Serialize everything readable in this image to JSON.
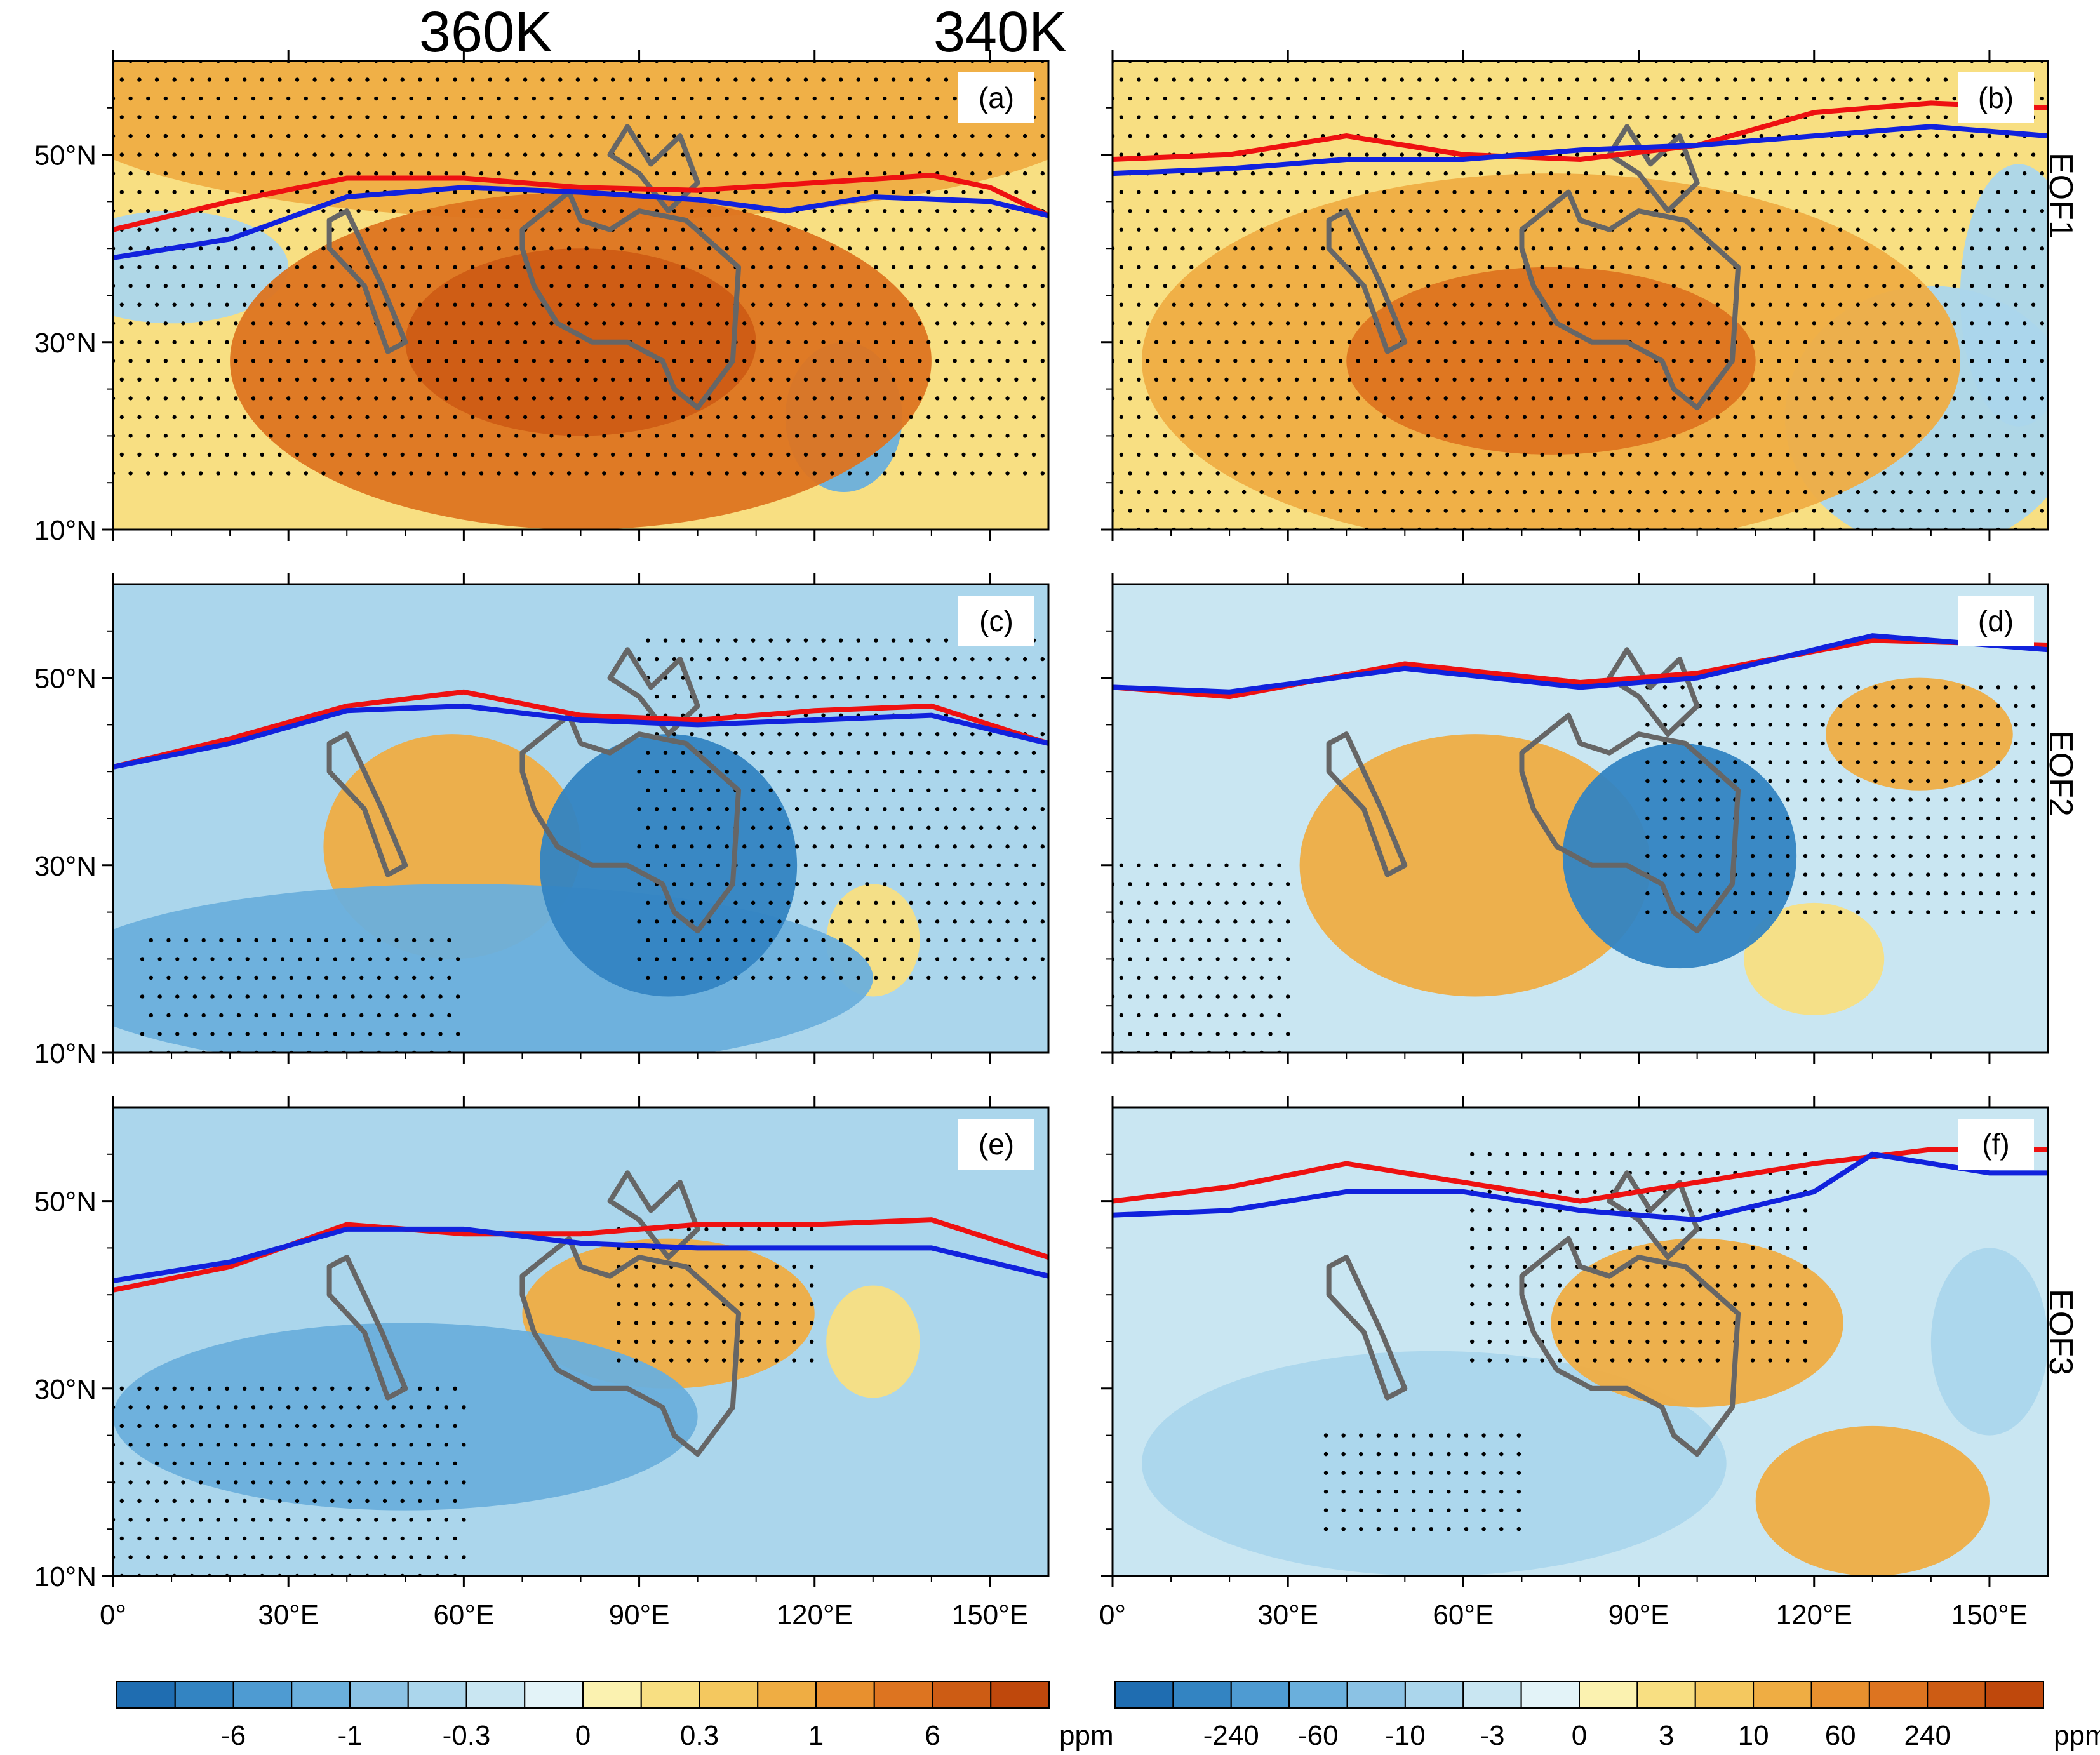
{
  "figure": {
    "column_titles": [
      "360K",
      "340K"
    ],
    "row_labels": [
      "EOF1",
      "EOF2",
      "EOF3"
    ],
    "panel_labels": [
      "(a)",
      "(b)",
      "(c)",
      "(d)",
      "(e)",
      "(f)"
    ]
  },
  "colors": {
    "red_line": "#ee1111",
    "blue_line": "#1122dd",
    "region_outline": "#666666",
    "palette": [
      "#1f6db1",
      "#3384c2",
      "#4e9bd2",
      "#6aafdc",
      "#8bc2e4",
      "#abd6ec",
      "#c9e6f2",
      "#e3f3f8",
      "#fbf2b0",
      "#f8df82",
      "#f4c85f",
      "#efad43",
      "#e8902e",
      "#dd7420",
      "#cd5c14",
      "#bf480c"
    ]
  },
  "chart_data": [
    {
      "type": "heatmap",
      "panel": "(a)",
      "column": "360K",
      "row": "EOF1",
      "xlim": [
        0,
        160
      ],
      "ylim": [
        10,
        60
      ],
      "xticks": [
        0,
        30,
        60,
        90,
        120,
        150
      ],
      "yticks": [
        10,
        30,
        50
      ],
      "xtick_labels": [],
      "ytick_labels": [
        "10°N",
        "30°N",
        "50°N"
      ],
      "red_line": [
        [
          0,
          42
        ],
        [
          20,
          45
        ],
        [
          40,
          47.5
        ],
        [
          60,
          47.5
        ],
        [
          80,
          46.5
        ],
        [
          100,
          46.2
        ],
        [
          120,
          47
        ],
        [
          140,
          47.8
        ],
        [
          150,
          46.5
        ],
        [
          160,
          43.5
        ]
      ],
      "blue_line": [
        [
          0,
          39
        ],
        [
          20,
          41
        ],
        [
          40,
          45.5
        ],
        [
          60,
          46.5
        ],
        [
          80,
          46
        ],
        [
          100,
          45.2
        ],
        [
          115,
          44
        ],
        [
          130,
          45.5
        ],
        [
          150,
          45
        ],
        [
          160,
          43.5
        ]
      ],
      "blobs": [
        {
          "lon": 80,
          "lat": 28,
          "rx": 60,
          "ry": 18,
          "value": 6
        },
        {
          "lon": 80,
          "lat": 30,
          "rx": 30,
          "ry": 10,
          "value": 9
        },
        {
          "lon": 80,
          "lat": 55,
          "rx": 90,
          "ry": 12,
          "value": 1
        },
        {
          "lon": 125,
          "lat": 22,
          "rx": 10,
          "ry": 8,
          "value": -1
        },
        {
          "lon": 10,
          "lat": 38,
          "rx": 20,
          "ry": 6,
          "value": -0.3
        }
      ],
      "base_value": 0.3,
      "stipple": [
        [
          0,
          160,
          16,
          60
        ]
      ]
    },
    {
      "type": "heatmap",
      "panel": "(b)",
      "column": "340K",
      "row": "EOF1",
      "xlim": [
        0,
        160
      ],
      "ylim": [
        10,
        60
      ],
      "xticks": [
        0,
        30,
        60,
        90,
        120,
        150
      ],
      "yticks": [
        10,
        30,
        50
      ],
      "xtick_labels": [],
      "ytick_labels": [],
      "red_line": [
        [
          0,
          49.5
        ],
        [
          20,
          50
        ],
        [
          40,
          52
        ],
        [
          60,
          50
        ],
        [
          80,
          49.5
        ],
        [
          100,
          51
        ],
        [
          120,
          54.5
        ],
        [
          140,
          55.5
        ],
        [
          160,
          55
        ]
      ],
      "blue_line": [
        [
          0,
          48
        ],
        [
          20,
          48.5
        ],
        [
          40,
          49.5
        ],
        [
          60,
          49.5
        ],
        [
          80,
          50.5
        ],
        [
          100,
          51
        ],
        [
          120,
          52
        ],
        [
          140,
          53
        ],
        [
          160,
          52
        ]
      ],
      "blobs": [
        {
          "lon": 75,
          "lat": 28,
          "rx": 70,
          "ry": 20,
          "value": 60
        },
        {
          "lon": 75,
          "lat": 28,
          "rx": 35,
          "ry": 10,
          "value": 240
        },
        {
          "lon": 140,
          "lat": 22,
          "rx": 25,
          "ry": 14,
          "value": -10
        },
        {
          "lon": 155,
          "lat": 35,
          "rx": 10,
          "ry": 14,
          "value": -10
        }
      ],
      "base_value": 10,
      "stipple": [
        [
          0,
          160,
          10,
          60
        ]
      ]
    },
    {
      "type": "heatmap",
      "panel": "(c)",
      "column": "360K",
      "row": "EOF2",
      "xlim": [
        0,
        160
      ],
      "ylim": [
        10,
        60
      ],
      "xticks": [
        0,
        30,
        60,
        90,
        120,
        150
      ],
      "yticks": [
        10,
        30,
        50
      ],
      "xtick_labels": [],
      "ytick_labels": [
        "10°N",
        "30°N",
        "50°N"
      ],
      "red_line": [
        [
          0,
          40.5
        ],
        [
          20,
          43.5
        ],
        [
          40,
          47
        ],
        [
          60,
          48.5
        ],
        [
          80,
          46
        ],
        [
          100,
          45.5
        ],
        [
          120,
          46.5
        ],
        [
          140,
          47
        ],
        [
          160,
          43
        ]
      ],
      "blue_line": [
        [
          0,
          40.5
        ],
        [
          20,
          43
        ],
        [
          40,
          46.5
        ],
        [
          60,
          47
        ],
        [
          80,
          45.5
        ],
        [
          100,
          45
        ],
        [
          120,
          45.5
        ],
        [
          140,
          46
        ],
        [
          160,
          43
        ]
      ],
      "blobs": [
        {
          "lon": 58,
          "lat": 32,
          "rx": 22,
          "ry": 12,
          "value": 1
        },
        {
          "lon": 95,
          "lat": 30,
          "rx": 22,
          "ry": 14,
          "value": -6
        },
        {
          "lon": 130,
          "lat": 22,
          "rx": 8,
          "ry": 6,
          "value": 0.3
        },
        {
          "lon": 60,
          "lat": 18,
          "rx": 70,
          "ry": 10,
          "value": -1
        }
      ],
      "base_value": -0.3,
      "stipple": [
        [
          90,
          160,
          18,
          55
        ],
        [
          5,
          60,
          10,
          22
        ]
      ]
    },
    {
      "type": "heatmap",
      "panel": "(d)",
      "column": "340K",
      "row": "EOF2",
      "xlim": [
        0,
        160
      ],
      "ylim": [
        10,
        60
      ],
      "xticks": [
        0,
        30,
        60,
        90,
        120,
        150
      ],
      "yticks": [
        10,
        30,
        50
      ],
      "xtick_labels": [],
      "ytick_labels": [],
      "red_line": [
        [
          0,
          49
        ],
        [
          20,
          48
        ],
        [
          50,
          51.5
        ],
        [
          80,
          49.5
        ],
        [
          100,
          50.5
        ],
        [
          130,
          54
        ],
        [
          160,
          53.5
        ]
      ],
      "blue_line": [
        [
          0,
          49
        ],
        [
          20,
          48.5
        ],
        [
          50,
          51
        ],
        [
          80,
          49
        ],
        [
          100,
          50
        ],
        [
          130,
          54.5
        ],
        [
          160,
          53
        ]
      ],
      "blobs": [
        {
          "lon": 62,
          "lat": 30,
          "rx": 30,
          "ry": 14,
          "value": 60
        },
        {
          "lon": 97,
          "lat": 31,
          "rx": 20,
          "ry": 12,
          "value": -240
        },
        {
          "lon": 138,
          "lat": 44,
          "rx": 16,
          "ry": 6,
          "value": 60
        },
        {
          "lon": 120,
          "lat": 20,
          "rx": 12,
          "ry": 6,
          "value": 10
        }
      ],
      "base_value": -3,
      "stipple": [
        [
          90,
          160,
          25,
          50
        ],
        [
          0,
          30,
          10,
          30
        ]
      ]
    },
    {
      "type": "heatmap",
      "panel": "(e)",
      "column": "360K",
      "row": "EOF3",
      "xlim": [
        0,
        160
      ],
      "ylim": [
        10,
        60
      ],
      "xticks": [
        0,
        30,
        60,
        90,
        120,
        150
      ],
      "yticks": [
        10,
        30,
        50
      ],
      "xtick_labels": [
        "0°",
        "30°E",
        "60°E",
        "90°E",
        "120°E",
        "150°E"
      ],
      "ytick_labels": [
        "10°N",
        "30°N",
        "50°N"
      ],
      "red_line": [
        [
          0,
          40.5
        ],
        [
          20,
          43
        ],
        [
          40,
          47.5
        ],
        [
          60,
          46.5
        ],
        [
          80,
          46.5
        ],
        [
          100,
          47.5
        ],
        [
          120,
          47.5
        ],
        [
          140,
          48
        ],
        [
          160,
          44
        ]
      ],
      "blue_line": [
        [
          0,
          41.5
        ],
        [
          20,
          43.5
        ],
        [
          40,
          47
        ],
        [
          60,
          47
        ],
        [
          80,
          45.5
        ],
        [
          100,
          45
        ],
        [
          120,
          45
        ],
        [
          140,
          45
        ],
        [
          160,
          42
        ]
      ],
      "blobs": [
        {
          "lon": 95,
          "lat": 38,
          "rx": 25,
          "ry": 8,
          "value": 1
        },
        {
          "lon": 50,
          "lat": 27,
          "rx": 50,
          "ry": 10,
          "value": -1
        },
        {
          "lon": 130,
          "lat": 35,
          "rx": 8,
          "ry": 6,
          "value": 0.3
        }
      ],
      "base_value": -0.3,
      "stipple": [
        [
          0,
          60,
          10,
          30
        ],
        [
          85,
          120,
          33,
          48
        ]
      ]
    },
    {
      "type": "heatmap",
      "panel": "(f)",
      "column": "340K",
      "row": "EOF3",
      "xlim": [
        0,
        160
      ],
      "ylim": [
        10,
        60
      ],
      "xticks": [
        0,
        30,
        60,
        90,
        120,
        150
      ],
      "yticks": [
        10,
        30,
        50
      ],
      "xtick_labels": [
        "0°",
        "30°E",
        "60°E",
        "90°E",
        "120°E",
        "150°E"
      ],
      "ytick_labels": [],
      "red_line": [
        [
          0,
          50
        ],
        [
          20,
          51.5
        ],
        [
          40,
          54
        ],
        [
          60,
          52
        ],
        [
          80,
          50
        ],
        [
          100,
          52
        ],
        [
          120,
          54
        ],
        [
          140,
          55.5
        ],
        [
          160,
          55.5
        ]
      ],
      "blue_line": [
        [
          0,
          48.5
        ],
        [
          20,
          49
        ],
        [
          40,
          51
        ],
        [
          60,
          51
        ],
        [
          80,
          49
        ],
        [
          100,
          48
        ],
        [
          120,
          51
        ],
        [
          130,
          55
        ],
        [
          150,
          53
        ],
        [
          160,
          53
        ]
      ],
      "blobs": [
        {
          "lon": 100,
          "lat": 37,
          "rx": 25,
          "ry": 9,
          "value": 60
        },
        {
          "lon": 130,
          "lat": 18,
          "rx": 20,
          "ry": 8,
          "value": 60
        },
        {
          "lon": 55,
          "lat": 22,
          "rx": 50,
          "ry": 12,
          "value": -10
        },
        {
          "lon": 150,
          "lat": 35,
          "rx": 10,
          "ry": 10,
          "value": -10
        }
      ],
      "base_value": -3,
      "stipple": [
        [
          60,
          120,
          33,
          56
        ],
        [
          35,
          70,
          15,
          25
        ]
      ]
    }
  ],
  "colorbars": [
    {
      "labels": [
        "-6",
        "-1",
        "-0.3",
        "0",
        "0.3",
        "1",
        "6"
      ],
      "unit": "ppm"
    },
    {
      "labels": [
        "-240",
        "-60",
        "-10",
        "-3",
        "0",
        "3",
        "10",
        "60",
        "240"
      ],
      "unit": "ppm"
    }
  ]
}
